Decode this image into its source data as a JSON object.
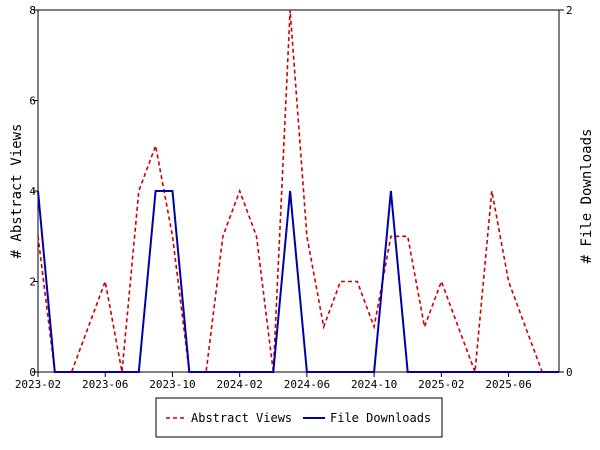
{
  "chart_data": {
    "type": "line",
    "xlabel": "",
    "x_tick_labels": [
      "2023-02",
      "2023-06",
      "2023-10",
      "2024-02",
      "2024-06",
      "2024-10",
      "2025-02",
      "2025-06"
    ],
    "x": [
      "2023-02",
      "2023-03",
      "2023-04",
      "2023-05",
      "2023-06",
      "2023-07",
      "2023-08",
      "2023-09",
      "2023-10",
      "2023-11",
      "2023-12",
      "2024-01",
      "2024-02",
      "2024-03",
      "2024-04",
      "2024-05",
      "2024-06",
      "2024-07",
      "2024-08",
      "2024-09",
      "2024-10",
      "2024-11",
      "2024-12",
      "2025-01",
      "2025-02",
      "2025-03",
      "2025-04",
      "2025-05",
      "2025-06",
      "2025-07",
      "2025-08",
      "2025-09"
    ],
    "y_left": {
      "label": "# Abstract Views",
      "ylim": [
        0,
        8
      ],
      "ticks": [
        "0",
        "2",
        "4",
        "6",
        "8"
      ]
    },
    "y_right": {
      "label": "# File Downloads",
      "ylim": [
        0,
        2
      ],
      "ticks": [
        "0",
        "2"
      ]
    },
    "series": [
      {
        "name": "Abstract Views",
        "axis": "left",
        "color": "#cc0000",
        "dash": true,
        "values": [
          3,
          0,
          0,
          1,
          2,
          0,
          4,
          5,
          3,
          0,
          0,
          3,
          4,
          3,
          0,
          8,
          3,
          1,
          2,
          2,
          1,
          3,
          3,
          1,
          2,
          1,
          0,
          4,
          2,
          1,
          0,
          0
        ]
      },
      {
        "name": "File Downloads",
        "axis": "right",
        "color": "#0000aa",
        "dash": false,
        "points": [
          [
            "2023-02",
            1
          ],
          [
            "2023-03",
            0
          ],
          [
            "2023-04",
            0
          ],
          [
            "2023-05",
            0
          ],
          [
            "2023-06",
            0
          ],
          [
            "2023-07",
            0
          ],
          [
            "2023-08",
            0
          ],
          [
            "2023-09",
            1
          ],
          [
            "2023-10",
            1
          ],
          [
            "2023-11",
            0
          ],
          [
            "2023-12",
            0
          ],
          [
            "2024-01",
            0
          ],
          [
            "2024-02",
            0
          ],
          [
            "2024-03",
            0
          ],
          [
            "2024-04",
            0
          ],
          [
            "2024-05",
            1
          ],
          [
            "2024-06",
            0
          ],
          [
            "2024-07",
            0
          ],
          [
            "2024-08",
            0
          ],
          [
            "2024-09",
            0
          ],
          [
            "2024-10",
            0
          ],
          [
            "2024-11",
            1
          ],
          [
            "2024-12",
            0
          ],
          [
            "2025-01",
            0
          ],
          [
            "2025-02",
            0
          ],
          [
            "2025-03",
            0
          ],
          [
            "2025-04",
            0
          ],
          [
            "2025-05",
            0
          ],
          [
            "2025-06",
            0
          ],
          [
            "2025-07",
            0
          ],
          [
            "2025-08",
            0
          ],
          [
            "2025-09",
            0
          ]
        ]
      }
    ],
    "grid": false,
    "legend": {
      "position": "bottom-center",
      "entries": [
        "Abstract Views",
        "File Downloads"
      ]
    }
  }
}
